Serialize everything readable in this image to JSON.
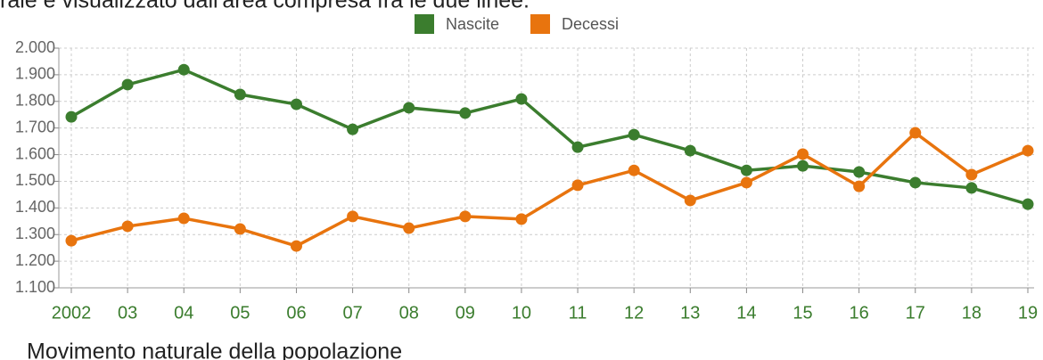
{
  "chart_data": {
    "type": "line",
    "caption": "rale è visualizzato dall'area compresa fra le due linee.",
    "title": "Movimento naturale della popolazione",
    "categories": [
      "2002",
      "03",
      "04",
      "05",
      "06",
      "07",
      "08",
      "09",
      "10",
      "11",
      "12",
      "13",
      "14",
      "15",
      "16",
      "17",
      "18",
      "19"
    ],
    "series": [
      {
        "name": "Nascite",
        "color": "#3b7d2e",
        "values": [
          1742,
          1863,
          1919,
          1826,
          1789,
          1695,
          1776,
          1756,
          1809,
          1628,
          1675,
          1615,
          1541,
          1558,
          1535,
          1495,
          1475,
          1414
        ]
      },
      {
        "name": "Decessi",
        "color": "#e8740e",
        "values": [
          1277,
          1331,
          1361,
          1321,
          1257,
          1368,
          1324,
          1368,
          1358,
          1485,
          1541,
          1428,
          1495,
          1602,
          1481,
          1682,
          1525,
          1615
        ]
      }
    ],
    "ylim": [
      1100,
      2000
    ],
    "yticks": [
      {
        "value": 1100,
        "label": "1.100"
      },
      {
        "value": 1200,
        "label": "1.200"
      },
      {
        "value": 1300,
        "label": "1.300"
      },
      {
        "value": 1400,
        "label": "1.400"
      },
      {
        "value": 1500,
        "label": "1.500"
      },
      {
        "value": 1600,
        "label": "1.600"
      },
      {
        "value": 1700,
        "label": "1.700"
      },
      {
        "value": 1800,
        "label": "1.800"
      },
      {
        "value": 1900,
        "label": "1.900"
      },
      {
        "value": 2000,
        "label": "2.000"
      }
    ],
    "grid": true,
    "legend": "top"
  }
}
